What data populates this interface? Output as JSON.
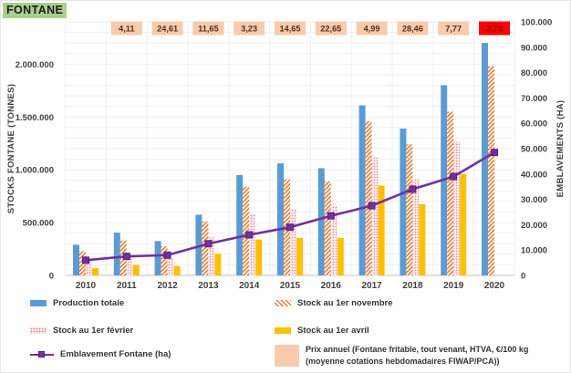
{
  "app": {
    "title_badge": "FONTANE",
    "badge_bg": "#A9D18E"
  },
  "chart_data": {
    "type": "combo-bar-line",
    "categories": [
      "2010",
      "2011",
      "2012",
      "2013",
      "2014",
      "2015",
      "2016",
      "2017",
      "2018",
      "2019",
      "2020"
    ],
    "left_axis": {
      "label": "STOCKS FONTANE (TONNES)",
      "min": 0,
      "max": 2400000,
      "grid_step": 100000,
      "tick_values": [
        0,
        500000,
        1000000,
        1500000,
        2000000
      ],
      "tick_labels": [
        "0",
        "500.000",
        "1.000.000",
        "1.500.000",
        "2.000.000"
      ]
    },
    "right_axis": {
      "label": "EMBLAVEMENTS (HA)",
      "min": 0,
      "max": 100000,
      "tick_values": [
        0,
        10000,
        20000,
        30000,
        40000,
        50000,
        60000,
        70000,
        80000,
        90000,
        100000
      ],
      "tick_labels": [
        "0",
        "10.000",
        "20.000",
        "30.000",
        "40.000",
        "50.000",
        "60.000",
        "70.000",
        "80.000",
        "90.000",
        "100.000"
      ]
    },
    "series": [
      {
        "name": "Production totale",
        "type": "bar",
        "style": "solid",
        "color": "#5B9BD5",
        "values": [
          290000,
          405000,
          325000,
          575000,
          950000,
          1060000,
          1015000,
          1610000,
          1390000,
          1800000,
          2200000
        ]
      },
      {
        "name": "Stock au 1er novembre",
        "type": "bar",
        "style": "hatch",
        "color": "#ED7D31",
        "values": [
          230000,
          330000,
          275000,
          510000,
          840000,
          910000,
          890000,
          1460000,
          1240000,
          1550000,
          1980000
        ]
      },
      {
        "name": "Stock au 1er février",
        "type": "bar",
        "style": "dots",
        "color": "#EE8893",
        "values": [
          165000,
          200000,
          160000,
          360000,
          585000,
          625000,
          665000,
          1115000,
          910000,
          1265000,
          null
        ]
      },
      {
        "name": "Stock au 1er avril",
        "type": "bar",
        "style": "solid",
        "color": "#FFC000",
        "values": [
          70000,
          100000,
          90000,
          205000,
          340000,
          355000,
          355000,
          850000,
          675000,
          960000,
          null
        ]
      },
      {
        "name": "Emblavement Fontane (ha)",
        "type": "line",
        "axis": "right",
        "color": "#7030A0",
        "values": [
          6000,
          7500,
          8000,
          12500,
          16000,
          19000,
          23500,
          27500,
          34000,
          39000,
          48500
        ]
      }
    ],
    "price_labels": {
      "name": "Prix annuel (Fontane fritable, tout venant, HTVA, €/100 kg (moyenne cotations hebdomadaires FIWAP/PCA))",
      "values": [
        null,
        "4,11",
        "24,61",
        "11,65",
        "3,23",
        "14,65",
        "22,65",
        "4,99",
        "28,46",
        "7,77",
        "2,73"
      ],
      "bg": "#F8CBAD",
      "text_color": "#5A2D0C",
      "highlight_index": 10,
      "highlight_bg": "#FF0000",
      "highlight_text": "#7F0000"
    }
  },
  "legend": {
    "columns": [
      [
        {
          "label": "Production totale",
          "swatch": "blue"
        },
        {
          "label": "Stock au 1er février",
          "swatch": "dots"
        },
        {
          "label": "Emblavement Fontane (ha)",
          "swatch": "line"
        }
      ],
      [
        {
          "label": "Stock au 1er novembre",
          "swatch": "hatch"
        },
        {
          "label": "Stock au 1er avril",
          "swatch": "yellow"
        },
        {
          "label": "Prix annuel (Fontane fritable, tout venant, HTVA, €/100 kg",
          "label2": "(moyenne cotations hebdomadaires FIWAP/PCA))",
          "swatch": "peach"
        }
      ]
    ]
  },
  "colors": {
    "grid": "#EFEFEF",
    "axis_line": "#C2C2C2",
    "tick_text": "#3F3F3F",
    "bar_blue": "#5B9BD5",
    "bar_orange": "#ED7D31",
    "bar_pink": "#EE8893",
    "bar_yellow": "#FFC000",
    "line_purple": "#7030A0"
  }
}
